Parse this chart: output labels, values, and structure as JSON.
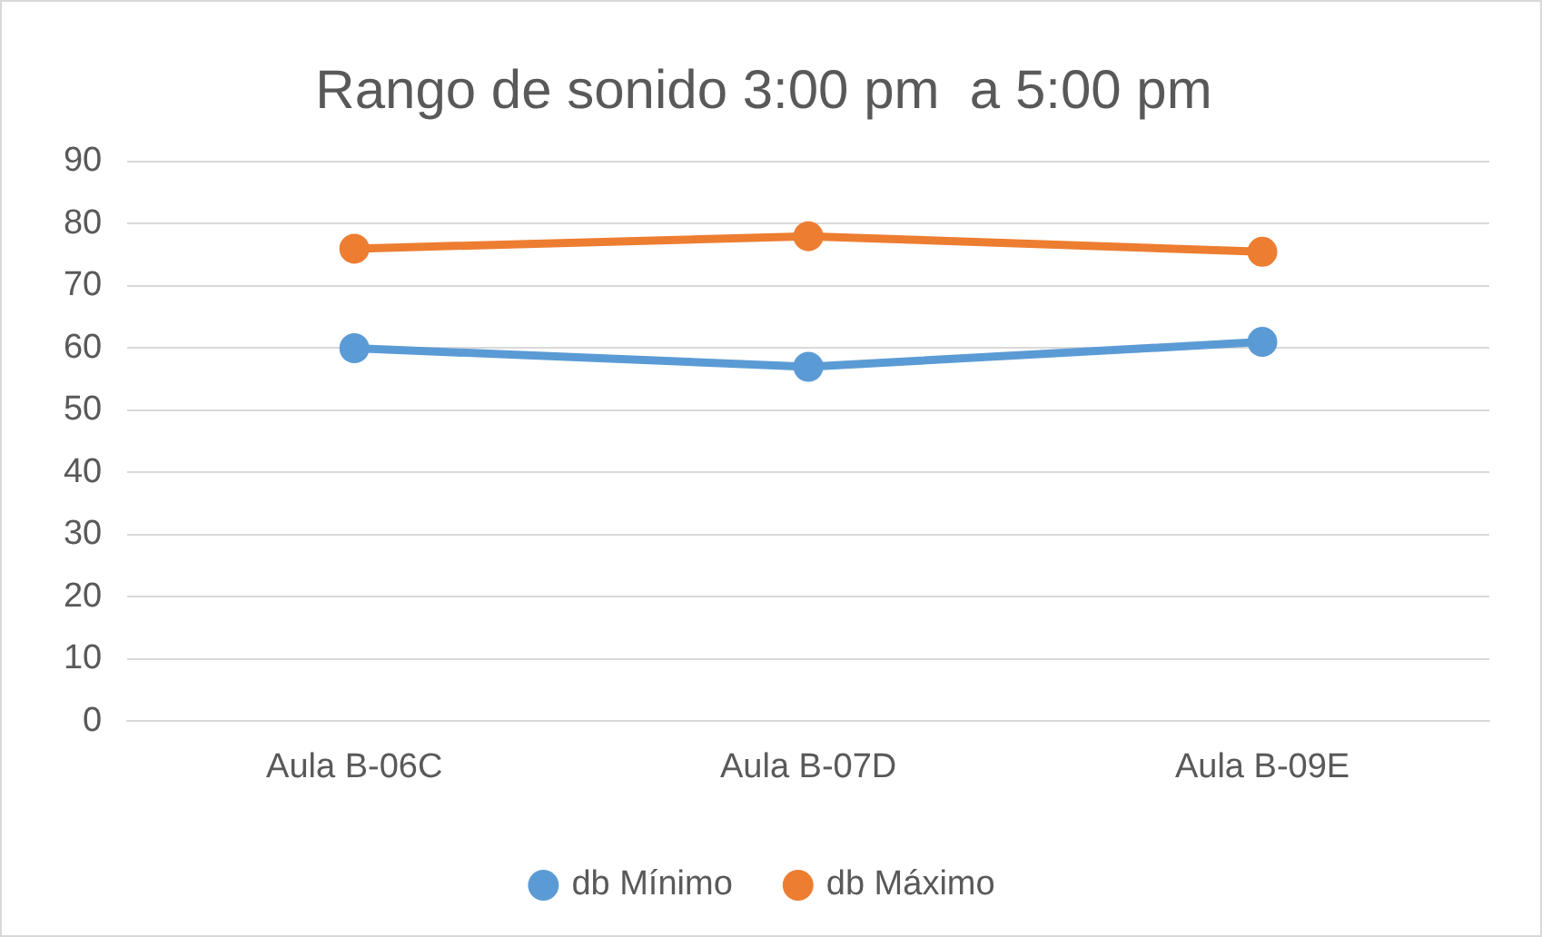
{
  "chart_data": {
    "type": "line",
    "title": "Rango de sonido 3:00 pm  a 5:00 pm",
    "categories": [
      "Aula B-06C",
      "Aula B-07D",
      "Aula B-09E"
    ],
    "series": [
      {
        "name": "db Mínimo",
        "color": "#5b9bd5",
        "values": [
          60,
          57,
          61
        ]
      },
      {
        "name": "db Máximo",
        "color": "#ed7d31",
        "values": [
          76,
          78,
          75.5
        ]
      }
    ],
    "ylim": [
      0,
      90
    ],
    "yticks": [
      0,
      10,
      20,
      30,
      40,
      50,
      60,
      70,
      80,
      90
    ],
    "grid": "y",
    "legend": "bottom",
    "marker": "circle",
    "line_style": "solid"
  }
}
